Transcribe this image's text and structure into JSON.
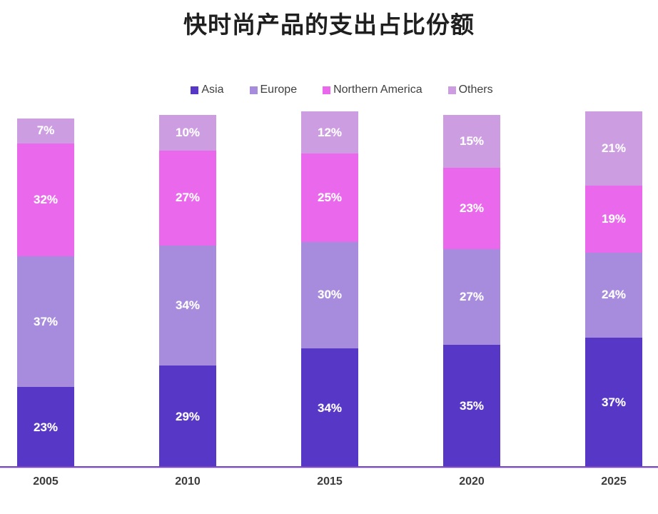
{
  "title": "快时尚产品的支出占比份额",
  "chart_data": {
    "type": "bar",
    "subtype": "stacked-column-100",
    "title": "快时尚产品的支出占比份额",
    "categories": [
      "2005",
      "2010",
      "2015",
      "2020",
      "2025"
    ],
    "series": [
      {
        "name": "Asia",
        "color": "#5637c6",
        "values": [
          23,
          29,
          34,
          35,
          37
        ]
      },
      {
        "name": "Europe",
        "color": "#a78bdd",
        "values": [
          37,
          34,
          30,
          27,
          24
        ]
      },
      {
        "name": "Northern America",
        "color": "#ea68ec",
        "values": [
          32,
          27,
          25,
          23,
          19
        ]
      },
      {
        "name": "Others",
        "color": "#cc9de1",
        "values": [
          7,
          10,
          12,
          15,
          21
        ]
      }
    ],
    "value_suffix": "%",
    "data_labels": "inside-center",
    "data_label_color": "#ffffff",
    "legend_position": "top",
    "grid": false,
    "y_axis_visible": false,
    "axis_line_color": "#7a48c0",
    "x_label_color": "#3c3c3c",
    "ylim": [
      0,
      101
    ]
  }
}
